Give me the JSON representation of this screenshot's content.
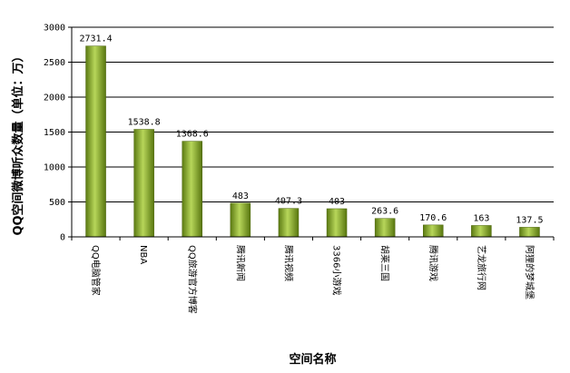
{
  "chart_data": {
    "type": "bar",
    "title": "",
    "xlabel": "空间名称",
    "ylabel": "QQ空间微博听众数量（单位：万）",
    "categories": [
      "QQ电脑管家",
      "NBA",
      "QQ旅游官方博客",
      "腾讯新闻",
      "腾讯视频",
      "3366小游戏",
      "胡莱三国",
      "腾讯游戏",
      "艺龙旅行网",
      "阿狸的梦城堡"
    ],
    "values": [
      2731.4,
      1538.8,
      1368.6,
      483,
      407.3,
      403,
      263.6,
      170.6,
      163,
      137.5
    ],
    "value_labels": [
      "2731.4",
      "1538.8",
      "1368.6",
      "483",
      "407.3",
      "403",
      "263.6",
      "170.6",
      "163",
      "137.5"
    ],
    "ylim": [
      0,
      3000
    ],
    "yticks": [
      0,
      500,
      1000,
      1500,
      2000,
      2500,
      3000
    ],
    "grid": true,
    "legend": "none",
    "bar_color": "#8cab2e"
  }
}
